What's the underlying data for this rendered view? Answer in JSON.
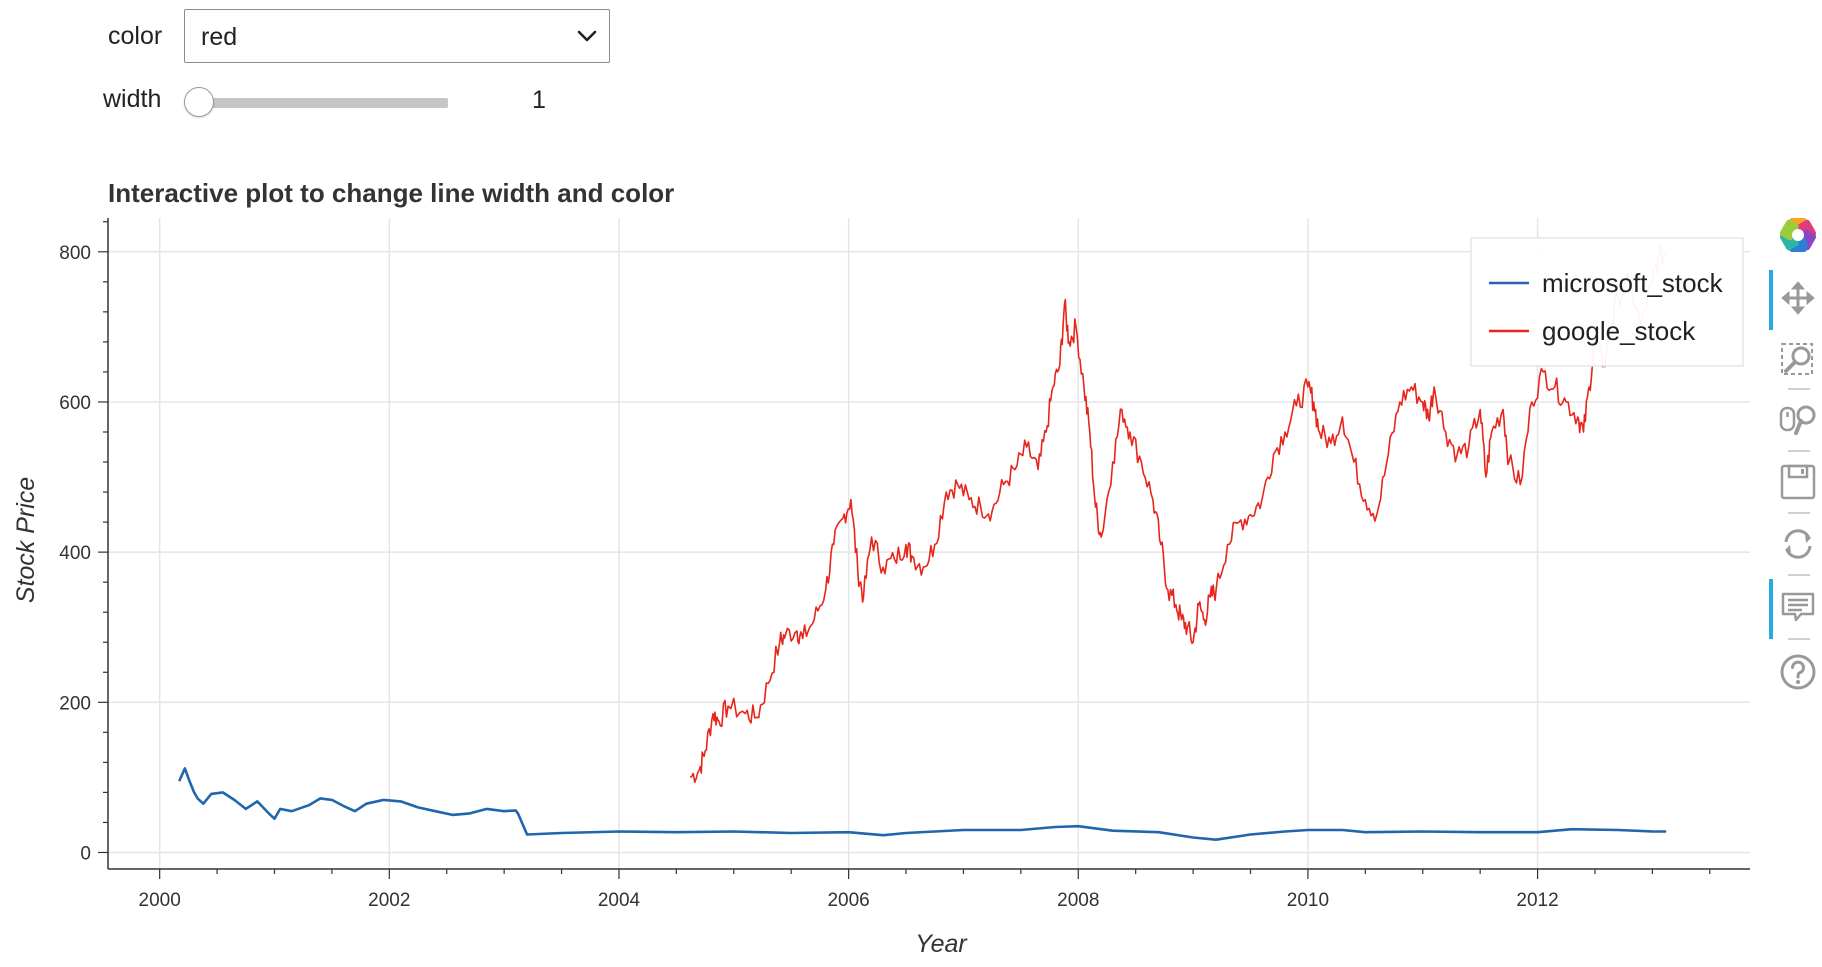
{
  "controls": {
    "color_label": "color",
    "color_value": "red",
    "width_label": "width",
    "width_value": "1",
    "width_min": 1,
    "width_max": 10
  },
  "colors": {
    "microsoft": "#2166ac",
    "google": "#e8251b",
    "grid": "#e5e5e5",
    "axis": "#333333",
    "active_tool": "#26aae1"
  },
  "toolbar": {
    "tools": [
      "bokeh-logo-icon",
      "pan-icon",
      "box-zoom-icon",
      "wheel-zoom-icon",
      "save-icon",
      "reset-icon",
      "hover-icon",
      "help-icon"
    ],
    "active": [
      "pan-icon",
      "hover-icon"
    ]
  },
  "chart_data": {
    "type": "line",
    "title": "Interactive plot to change line width and color",
    "xlabel": "Year",
    "ylabel": "Stock Price",
    "xlim": [
      1999.55,
      2013.85
    ],
    "ylim": [
      -22,
      845
    ],
    "x_ticks": [
      2000,
      2002,
      2004,
      2006,
      2008,
      2010,
      2012
    ],
    "y_ticks": [
      0,
      200,
      400,
      600,
      800
    ],
    "grid": true,
    "legend_position": "top-right",
    "series": [
      {
        "name": "microsoft_stock",
        "color": "#2166ac",
        "x": [
          2000.17,
          2000.22,
          2000.26,
          2000.3,
          2000.33,
          2000.38,
          2000.45,
          2000.55,
          2000.65,
          2000.75,
          2000.85,
          2000.95,
          2001.0,
          2001.05,
          2001.15,
          2001.3,
          2001.4,
          2001.5,
          2001.6,
          2001.7,
          2001.8,
          2001.95,
          2002.1,
          2002.25,
          2002.4,
          2002.55,
          2002.7,
          2002.85,
          2003.0,
          2003.1,
          2003.12,
          2003.2,
          2003.5,
          2004.0,
          2004.5,
          2005.0,
          2005.5,
          2006.0,
          2006.3,
          2006.5,
          2007.0,
          2007.5,
          2007.8,
          2008.0,
          2008.3,
          2008.7,
          2009.0,
          2009.2,
          2009.5,
          2009.8,
          2010.0,
          2010.3,
          2010.5,
          2011.0,
          2011.5,
          2012.0,
          2012.3,
          2012.7,
          2013.0,
          2013.12
        ],
        "y": [
          95,
          112,
          95,
          80,
          72,
          65,
          78,
          80,
          70,
          58,
          68,
          52,
          45,
          58,
          55,
          63,
          72,
          70,
          62,
          55,
          65,
          70,
          68,
          60,
          55,
          50,
          52,
          58,
          55,
          56,
          52,
          24,
          26,
          28,
          27,
          28,
          26,
          27,
          23,
          26,
          30,
          30,
          34,
          35,
          29,
          27,
          20,
          17,
          24,
          28,
          30,
          30,
          27,
          28,
          27,
          27,
          31,
          30,
          28,
          28
        ]
      },
      {
        "name": "google_stock",
        "color": "#e8251b",
        "x": [
          2004.62,
          2004.7,
          2004.75,
          2004.82,
          2004.87,
          2004.95,
          2005.1,
          2005.2,
          2005.3,
          2005.4,
          2005.45,
          2005.55,
          2005.6,
          2005.7,
          2005.8,
          2005.87,
          2005.95,
          2006.02,
          2006.08,
          2006.13,
          2006.2,
          2006.3,
          2006.4,
          2006.5,
          2006.55,
          2006.65,
          2006.75,
          2006.85,
          2006.95,
          2007.05,
          2007.15,
          2007.25,
          2007.35,
          2007.45,
          2007.55,
          2007.65,
          2007.72,
          2007.78,
          2007.84,
          2007.88,
          2007.92,
          2007.98,
          2008.05,
          2008.1,
          2008.15,
          2008.2,
          2008.3,
          2008.38,
          2008.45,
          2008.55,
          2008.65,
          2008.72,
          2008.78,
          2008.85,
          2008.9,
          2008.95,
          2009.0,
          2009.05,
          2009.1,
          2009.15,
          2009.2,
          2009.3,
          2009.4,
          2009.5,
          2009.6,
          2009.7,
          2009.8,
          2009.9,
          2010.0,
          2010.05,
          2010.1,
          2010.2,
          2010.3,
          2010.4,
          2010.5,
          2010.6,
          2010.7,
          2010.8,
          2010.9,
          2011.0,
          2011.05,
          2011.1,
          2011.2,
          2011.3,
          2011.4,
          2011.5,
          2011.55,
          2011.6,
          2011.7,
          2011.75,
          2011.85,
          2011.95,
          2012.05,
          2012.15,
          2012.25,
          2012.35,
          2012.4,
          2012.45,
          2012.5,
          2012.58,
          2012.62,
          2012.7,
          2012.8,
          2012.9,
          2013.0,
          2013.05,
          2013.12
        ],
        "y": [
          100,
          110,
          135,
          185,
          175,
          195,
          185,
          180,
          225,
          280,
          290,
          295,
          285,
          310,
          350,
          410,
          445,
          470,
          375,
          340,
          420,
          380,
          390,
          410,
          395,
          380,
          410,
          480,
          490,
          470,
          460,
          455,
          490,
          510,
          540,
          510,
          560,
          620,
          650,
          730,
          680,
          700,
          620,
          560,
          460,
          420,
          520,
          590,
          560,
          520,
          470,
          410,
          350,
          330,
          310,
          300,
          280,
          330,
          310,
          340,
          350,
          410,
          440,
          450,
          470,
          530,
          560,
          595,
          620,
          600,
          560,
          545,
          580,
          520,
          470,
          450,
          530,
          600,
          620,
          600,
          580,
          620,
          560,
          530,
          540,
          590,
          500,
          560,
          590,
          520,
          490,
          600,
          640,
          620,
          600,
          580,
          560,
          620,
          680,
          650,
          690,
          740,
          760,
          700,
          760,
          790,
          800
        ]
      }
    ]
  }
}
